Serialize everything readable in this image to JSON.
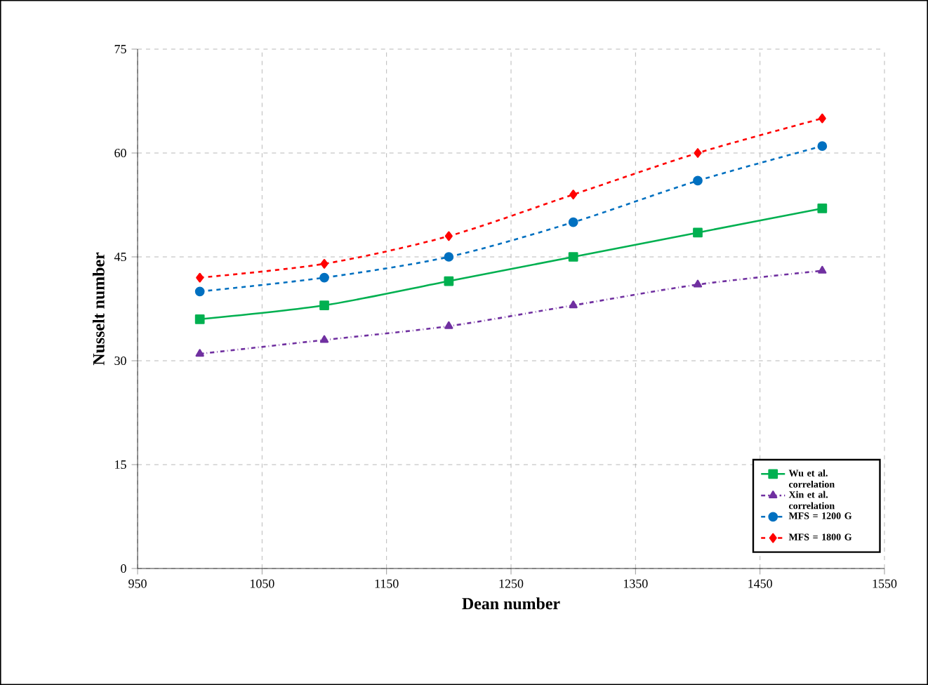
{
  "chart_data": {
    "type": "line",
    "xlabel": "Dean number",
    "ylabel": "Nusselt number",
    "x": [
      1000,
      1100,
      1200,
      1300,
      1400,
      1500
    ],
    "xlim": [
      950,
      1550
    ],
    "xticks": [
      950,
      1050,
      1150,
      1250,
      1350,
      1450,
      1550
    ],
    "ylim": [
      0,
      75
    ],
    "yticks": [
      0,
      15,
      30,
      45,
      60,
      75
    ],
    "grid": true,
    "legend": "bottom right",
    "series": [
      {
        "name": "Wu et al. correlation",
        "color": "#00b050",
        "marker": "square",
        "line_style": "solid",
        "values": [
          36,
          38,
          41.5,
          45,
          48.5,
          52
        ]
      },
      {
        "name": "Xin et al. correlation",
        "color": "#7030a0",
        "marker": "triangle",
        "line_style": "dashdot",
        "values": [
          31,
          33,
          35,
          38,
          41,
          43
        ]
      },
      {
        "name": "MFS = 1200 G",
        "color": "#0070c0",
        "marker": "circle",
        "line_style": "dashed",
        "values": [
          40,
          42,
          45,
          50,
          56,
          61
        ]
      },
      {
        "name": "MFS = 1800 G",
        "color": "#ff0000",
        "marker": "diamond",
        "line_style": "dashed",
        "values": [
          42,
          44,
          48,
          54,
          60,
          65
        ]
      }
    ]
  }
}
